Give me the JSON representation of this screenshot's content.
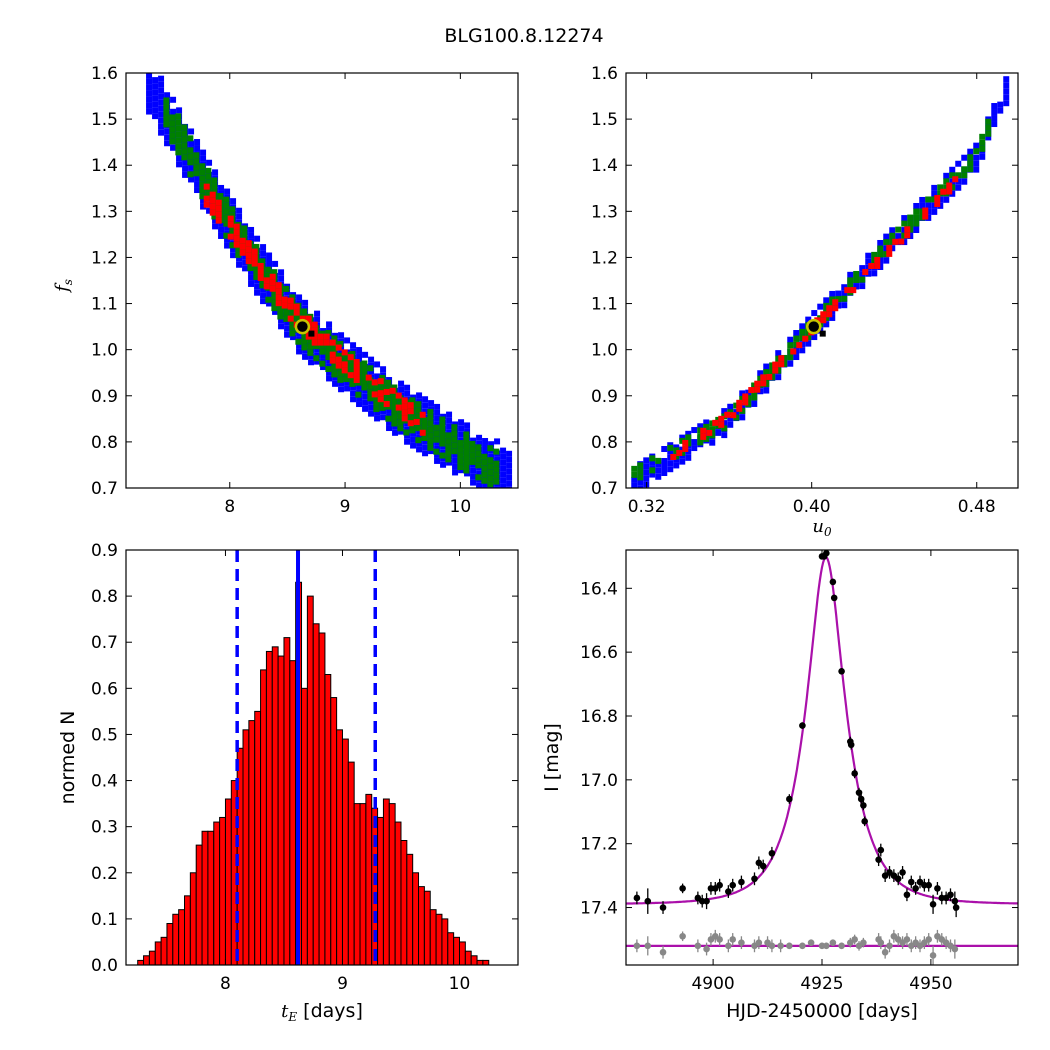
{
  "figure": {
    "title": "BLG100.8.12274"
  },
  "colors": {
    "blue": "#0000ff",
    "green": "#008000",
    "red": "#ff0000",
    "black": "#000000",
    "magenta": "#aa10aa",
    "gray": "#888888",
    "marker_edge": "#c8c400",
    "bar_fill": "#ff0000"
  },
  "chart_data": [
    {
      "id": "fs_vs_tE",
      "type": "scatter",
      "title": "",
      "xlabel": "",
      "ylabel": "f_s",
      "ylabel_display": {
        "base": "f",
        "sub": "s"
      },
      "xlim": [
        7.1,
        10.5
      ],
      "ylim": [
        0.7,
        1.6
      ],
      "xticks": [
        8,
        9,
        10
      ],
      "xtick_labels": [
        "8",
        "9",
        "10"
      ],
      "yticks": [
        0.7,
        0.8,
        0.9,
        1.0,
        1.1,
        1.2,
        1.3,
        1.4,
        1.5,
        1.6
      ],
      "ytick_labels": [
        "0.7",
        "0.8",
        "0.9",
        "1.0",
        "1.1",
        "1.2",
        "1.3",
        "1.4",
        "1.5",
        "1.6"
      ],
      "grid": false,
      "bands": [
        {
          "level": "outer",
          "color": "blue",
          "centerline": [
            [
              7.3,
              1.58
            ],
            [
              7.8,
              1.36
            ],
            [
              8.2,
              1.2
            ],
            [
              8.6,
              1.06
            ],
            [
              9.0,
              0.97
            ],
            [
              9.5,
              0.87
            ],
            [
              10.0,
              0.79
            ],
            [
              10.45,
              0.73
            ]
          ],
          "halfwidth": 0.06
        },
        {
          "level": "middle",
          "color": "green",
          "centerline": [
            [
              7.45,
              1.52
            ],
            [
              7.8,
              1.36
            ],
            [
              8.2,
              1.2
            ],
            [
              8.6,
              1.06
            ],
            [
              9.0,
              0.97
            ],
            [
              9.5,
              0.87
            ],
            [
              10.0,
              0.79
            ],
            [
              10.35,
              0.74
            ]
          ],
          "halfwidth": 0.04
        },
        {
          "level": "inner",
          "color": "red",
          "centerline": [
            [
              7.8,
              1.34
            ],
            [
              8.1,
              1.24
            ],
            [
              8.5,
              1.1
            ],
            [
              8.9,
              1.0
            ],
            [
              9.3,
              0.92
            ],
            [
              9.7,
              0.84
            ]
          ],
          "halfwidth": 0.02
        }
      ],
      "best_fit": {
        "x": 8.63,
        "y": 1.05
      }
    },
    {
      "id": "fs_vs_u0",
      "type": "scatter",
      "title": "",
      "xlabel": "u_0",
      "xlabel_display": {
        "base": "u",
        "sub": "0"
      },
      "ylabel": "",
      "xlim": [
        0.31,
        0.5
      ],
      "ylim": [
        0.7,
        1.6
      ],
      "xticks": [
        0.32,
        0.4,
        0.48
      ],
      "xtick_labels": [
        "0.32",
        "0.40",
        "0.48"
      ],
      "yticks": [
        0.7,
        0.8,
        0.9,
        1.0,
        1.1,
        1.2,
        1.3,
        1.4,
        1.5,
        1.6
      ],
      "ytick_labels": [
        "0.7",
        "0.8",
        "0.9",
        "1.0",
        "1.1",
        "1.2",
        "1.3",
        "1.4",
        "1.5",
        "1.6"
      ],
      "grid": false,
      "bands": [
        {
          "level": "outer",
          "color": "blue",
          "centerline": [
            [
              0.314,
              0.72
            ],
            [
              0.36,
              0.85
            ],
            [
              0.4,
              1.05
            ],
            [
              0.44,
              1.24
            ],
            [
              0.48,
              1.42
            ],
            [
              0.496,
              1.58
            ]
          ],
          "halfwidth": 0.03
        },
        {
          "level": "middle",
          "color": "green",
          "centerline": [
            [
              0.314,
              0.73
            ],
            [
              0.36,
              0.85
            ],
            [
              0.4,
              1.05
            ],
            [
              0.44,
              1.24
            ],
            [
              0.48,
              1.42
            ],
            [
              0.488,
              1.51
            ]
          ],
          "halfwidth": 0.018
        },
        {
          "level": "inner",
          "color": "red",
          "centerline": [
            [
              0.33,
              0.77
            ],
            [
              0.36,
              0.86
            ],
            [
              0.4,
              1.05
            ],
            [
              0.44,
              1.23
            ],
            [
              0.47,
              1.37
            ]
          ],
          "halfwidth": 0.008
        }
      ],
      "best_fit": {
        "x": 0.401,
        "y": 1.05
      }
    },
    {
      "id": "tE_histogram",
      "type": "bar",
      "title": "",
      "xlabel": "t_E [days]",
      "xlabel_display": {
        "base": "t",
        "sub": "E",
        "suffix": " [days]"
      },
      "ylabel": "normed N",
      "xlim": [
        7.15,
        10.5
      ],
      "ylim": [
        0.0,
        0.9
      ],
      "xticks": [
        8,
        9,
        10
      ],
      "xtick_labels": [
        "8",
        "9",
        "10"
      ],
      "yticks": [
        0.0,
        0.1,
        0.2,
        0.3,
        0.4,
        0.5,
        0.6,
        0.7,
        0.8,
        0.9
      ],
      "ytick_labels": [
        "0.0",
        "0.1",
        "0.2",
        "0.3",
        "0.4",
        "0.5",
        "0.6",
        "0.7",
        "0.8",
        "0.9"
      ],
      "grid": false,
      "bin_start": 7.25,
      "bin_width": 0.05,
      "values": [
        0.01,
        0.02,
        0.03,
        0.05,
        0.06,
        0.09,
        0.11,
        0.12,
        0.15,
        0.2,
        0.26,
        0.29,
        0.29,
        0.31,
        0.32,
        0.36,
        0.4,
        0.47,
        0.51,
        0.53,
        0.55,
        0.64,
        0.68,
        0.69,
        0.67,
        0.71,
        0.66,
        0.83,
        0.6,
        0.8,
        0.74,
        0.72,
        0.63,
        0.58,
        0.51,
        0.49,
        0.44,
        0.35,
        0.35,
        0.37,
        0.34,
        0.32,
        0.36,
        0.35,
        0.31,
        0.27,
        0.24,
        0.2,
        0.17,
        0.16,
        0.12,
        0.11,
        0.1,
        0.07,
        0.06,
        0.05,
        0.03,
        0.02,
        0.01,
        0.01
      ],
      "vlines": [
        {
          "x": 8.62,
          "style": "solid",
          "color": "blue"
        },
        {
          "x": 8.1,
          "style": "dashed",
          "color": "blue"
        },
        {
          "x": 9.28,
          "style": "dashed",
          "color": "blue"
        }
      ]
    },
    {
      "id": "lightcurve",
      "type": "scatter",
      "title": "",
      "xlabel": "HJD-2450000 [days]",
      "ylabel": "I [mag]",
      "xlim": [
        4880,
        4970
      ],
      "ylim": [
        17.58,
        16.28
      ],
      "y_inverted": true,
      "xticks": [
        4900,
        4925,
        4950
      ],
      "xtick_labels": [
        "4900",
        "4925",
        "4950"
      ],
      "yticks": [
        16.4,
        16.6,
        16.8,
        17.0,
        17.2,
        17.4
      ],
      "ytick_labels": [
        "16.4",
        "16.6",
        "16.8",
        "17.0",
        "17.2",
        "17.4"
      ],
      "grid": false,
      "model": {
        "t0": 4925.9,
        "tE": 8.63,
        "u0": 0.401,
        "base_mag": 17.39,
        "fs": 1.05,
        "color": "magenta"
      },
      "residual_baseline": {
        "mag": 17.52,
        "color": "magenta"
      },
      "series": [
        {
          "color": "black",
          "points": [
            {
              "x": 4882.5,
              "y": 17.37,
              "e": 0.02
            },
            {
              "x": 4885.0,
              "y": 17.38,
              "e": 0.04
            },
            {
              "x": 4888.5,
              "y": 17.4,
              "e": 0.02
            },
            {
              "x": 4893.0,
              "y": 17.34,
              "e": 0.015
            },
            {
              "x": 4896.5,
              "y": 17.37,
              "e": 0.02
            },
            {
              "x": 4897.5,
              "y": 17.38,
              "e": 0.02
            },
            {
              "x": 4898.5,
              "y": 17.38,
              "e": 0.025
            },
            {
              "x": 4899.5,
              "y": 17.34,
              "e": 0.02
            },
            {
              "x": 4900.5,
              "y": 17.34,
              "e": 0.02
            },
            {
              "x": 4901.5,
              "y": 17.33,
              "e": 0.02
            },
            {
              "x": 4903.5,
              "y": 17.35,
              "e": 0.02
            },
            {
              "x": 4904.5,
              "y": 17.33,
              "e": 0.02
            },
            {
              "x": 4906.5,
              "y": 17.32,
              "e": 0.02
            },
            {
              "x": 4909.5,
              "y": 17.31,
              "e": 0.02
            },
            {
              "x": 4910.5,
              "y": 17.26,
              "e": 0.02
            },
            {
              "x": 4911.5,
              "y": 17.27,
              "e": 0.02
            },
            {
              "x": 4913.5,
              "y": 17.23,
              "e": 0.02
            },
            {
              "x": 4917.5,
              "y": 17.06,
              "e": 0.015
            },
            {
              "x": 4920.5,
              "y": 16.83,
              "e": 0.01
            },
            {
              "x": 4925.0,
              "y": 16.3,
              "e": 0.01
            },
            {
              "x": 4925.5,
              "y": 16.3,
              "e": 0.01
            },
            {
              "x": 4926.0,
              "y": 16.29,
              "e": 0.01
            },
            {
              "x": 4927.5,
              "y": 16.38,
              "e": 0.01
            },
            {
              "x": 4927.8,
              "y": 16.43,
              "e": 0.01
            },
            {
              "x": 4929.5,
              "y": 16.66,
              "e": 0.01
            },
            {
              "x": 4931.5,
              "y": 16.88,
              "e": 0.015
            },
            {
              "x": 4931.7,
              "y": 16.89,
              "e": 0.015
            },
            {
              "x": 4932.5,
              "y": 16.98,
              "e": 0.015
            },
            {
              "x": 4933.5,
              "y": 17.04,
              "e": 0.015
            },
            {
              "x": 4934.0,
              "y": 17.06,
              "e": 0.015
            },
            {
              "x": 4934.5,
              "y": 17.08,
              "e": 0.015
            },
            {
              "x": 4934.8,
              "y": 17.13,
              "e": 0.015
            },
            {
              "x": 4938.5,
              "y": 17.22,
              "e": 0.02
            },
            {
              "x": 4938.0,
              "y": 17.25,
              "e": 0.02
            },
            {
              "x": 4939.5,
              "y": 17.3,
              "e": 0.02
            },
            {
              "x": 4940.5,
              "y": 17.29,
              "e": 0.02
            },
            {
              "x": 4941.5,
              "y": 17.3,
              "e": 0.02
            },
            {
              "x": 4942.5,
              "y": 17.31,
              "e": 0.02
            },
            {
              "x": 4943.5,
              "y": 17.29,
              "e": 0.02
            },
            {
              "x": 4944.5,
              "y": 17.36,
              "e": 0.02
            },
            {
              "x": 4945.5,
              "y": 17.32,
              "e": 0.02
            },
            {
              "x": 4946.5,
              "y": 17.34,
              "e": 0.02
            },
            {
              "x": 4947.5,
              "y": 17.32,
              "e": 0.02
            },
            {
              "x": 4948.5,
              "y": 17.33,
              "e": 0.02
            },
            {
              "x": 4949.5,
              "y": 17.33,
              "e": 0.02
            },
            {
              "x": 4950.5,
              "y": 17.39,
              "e": 0.03
            },
            {
              "x": 4951.5,
              "y": 17.34,
              "e": 0.02
            },
            {
              "x": 4952.5,
              "y": 17.37,
              "e": 0.02
            },
            {
              "x": 4953.5,
              "y": 17.37,
              "e": 0.02
            },
            {
              "x": 4954.5,
              "y": 17.36,
              "e": 0.02
            },
            {
              "x": 4955.5,
              "y": 17.38,
              "e": 0.03
            },
            {
              "x": 4955.8,
              "y": 17.4,
              "e": 0.03
            }
          ]
        },
        {
          "color": "gray",
          "points": [
            {
              "x": 4882.5,
              "y": 17.52,
              "e": 0.02
            },
            {
              "x": 4885.0,
              "y": 17.52,
              "e": 0.03
            },
            {
              "x": 4888.5,
              "y": 17.54,
              "e": 0.02
            },
            {
              "x": 4893.0,
              "y": 17.49,
              "e": 0.015
            },
            {
              "x": 4896.5,
              "y": 17.52,
              "e": 0.02
            },
            {
              "x": 4898.5,
              "y": 17.53,
              "e": 0.02
            },
            {
              "x": 4899.5,
              "y": 17.5,
              "e": 0.02
            },
            {
              "x": 4900.5,
              "y": 17.49,
              "e": 0.02
            },
            {
              "x": 4901.5,
              "y": 17.5,
              "e": 0.02
            },
            {
              "x": 4903.5,
              "y": 17.52,
              "e": 0.02
            },
            {
              "x": 4904.5,
              "y": 17.5,
              "e": 0.02
            },
            {
              "x": 4906.5,
              "y": 17.51,
              "e": 0.02
            },
            {
              "x": 4909.5,
              "y": 17.52,
              "e": 0.02
            },
            {
              "x": 4910.5,
              "y": 17.51,
              "e": 0.02
            },
            {
              "x": 4912.5,
              "y": 17.51,
              "e": 0.02
            },
            {
              "x": 4913.5,
              "y": 17.52,
              "e": 0.02
            },
            {
              "x": 4915.5,
              "y": 17.52,
              "e": 0.02
            },
            {
              "x": 4917.5,
              "y": 17.52,
              "e": 0.01
            },
            {
              "x": 4920.5,
              "y": 17.52,
              "e": 0.01
            },
            {
              "x": 4922.5,
              "y": 17.51,
              "e": 0.01
            },
            {
              "x": 4925.0,
              "y": 17.52,
              "e": 0.01
            },
            {
              "x": 4926.0,
              "y": 17.52,
              "e": 0.01
            },
            {
              "x": 4927.5,
              "y": 17.51,
              "e": 0.01
            },
            {
              "x": 4929.5,
              "y": 17.52,
              "e": 0.01
            },
            {
              "x": 4931.5,
              "y": 17.51,
              "e": 0.015
            },
            {
              "x": 4932.5,
              "y": 17.5,
              "e": 0.015
            },
            {
              "x": 4933.5,
              "y": 17.52,
              "e": 0.015
            },
            {
              "x": 4934.5,
              "y": 17.51,
              "e": 0.015
            },
            {
              "x": 4938.0,
              "y": 17.5,
              "e": 0.02
            },
            {
              "x": 4938.5,
              "y": 17.51,
              "e": 0.02
            },
            {
              "x": 4939.5,
              "y": 17.54,
              "e": 0.02
            },
            {
              "x": 4940.5,
              "y": 17.52,
              "e": 0.02
            },
            {
              "x": 4941.5,
              "y": 17.49,
              "e": 0.02
            },
            {
              "x": 4942.5,
              "y": 17.5,
              "e": 0.02
            },
            {
              "x": 4943.5,
              "y": 17.51,
              "e": 0.02
            },
            {
              "x": 4944.5,
              "y": 17.5,
              "e": 0.02
            },
            {
              "x": 4945.5,
              "y": 17.52,
              "e": 0.02
            },
            {
              "x": 4946.5,
              "y": 17.51,
              "e": 0.02
            },
            {
              "x": 4947.5,
              "y": 17.52,
              "e": 0.02
            },
            {
              "x": 4948.5,
              "y": 17.51,
              "e": 0.02
            },
            {
              "x": 4949.5,
              "y": 17.5,
              "e": 0.02
            },
            {
              "x": 4950.5,
              "y": 17.55,
              "e": 0.03
            },
            {
              "x": 4951.5,
              "y": 17.49,
              "e": 0.02
            },
            {
              "x": 4952.5,
              "y": 17.5,
              "e": 0.02
            },
            {
              "x": 4953.5,
              "y": 17.51,
              "e": 0.02
            },
            {
              "x": 4954.5,
              "y": 17.52,
              "e": 0.02
            },
            {
              "x": 4955.5,
              "y": 17.53,
              "e": 0.03
            }
          ]
        }
      ]
    }
  ]
}
